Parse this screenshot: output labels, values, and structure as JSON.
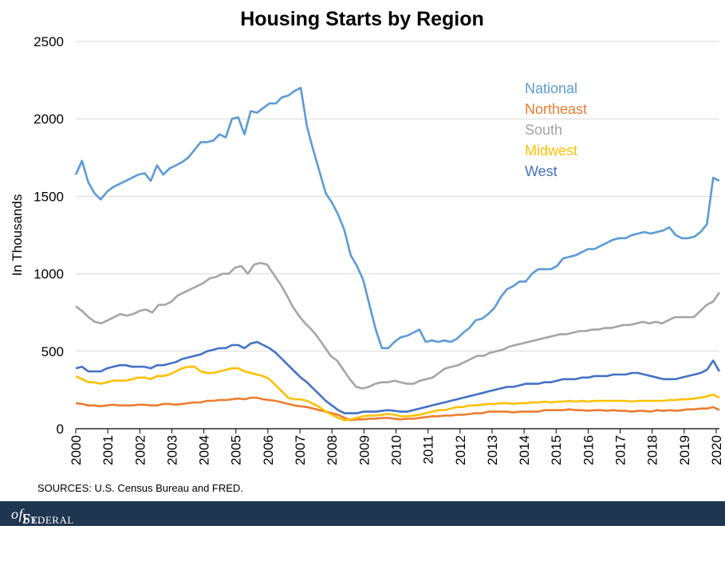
{
  "chart_data": {
    "type": "line",
    "title": "Housing Starts by Region",
    "ylabel": "In Thousands",
    "xlabel": "",
    "ylim": [
      0,
      2500
    ],
    "yticks": [
      0,
      500,
      1000,
      1500,
      2000,
      2500
    ],
    "xlim": [
      2000,
      2020.1
    ],
    "xticks": [
      "2000",
      "2001",
      "2002",
      "2003",
      "2004",
      "2005",
      "2006",
      "2007",
      "2008",
      "2009",
      "2010",
      "2011",
      "2012",
      "2013",
      "2014",
      "2015",
      "2016",
      "2017",
      "2018",
      "2019",
      "2020"
    ],
    "grid": "horizontal",
    "legend_position": "top-right",
    "note": "Monthly values, approximate points read every quarter-year",
    "series": [
      {
        "name": "National",
        "color": "#5b9bd5",
        "values": [
          1640,
          1730,
          1590,
          1520,
          1480,
          1530,
          1560,
          1580,
          1600,
          1620,
          1640,
          1650,
          1600,
          1700,
          1640,
          1680,
          1700,
          1720,
          1750,
          1800,
          1850,
          1850,
          1860,
          1900,
          1880,
          2000,
          2010,
          1900,
          2050,
          2040,
          2070,
          2100,
          2100,
          2140,
          2150,
          2180,
          2200,
          1950,
          1800,
          1660,
          1520,
          1460,
          1380,
          1280,
          1120,
          1050,
          960,
          800,
          640,
          520,
          520,
          560,
          590,
          600,
          620,
          640,
          560,
          570,
          560,
          570,
          560,
          580,
          620,
          650,
          700,
          710,
          740,
          780,
          850,
          900,
          920,
          950,
          950,
          1000,
          1030,
          1030,
          1030,
          1050,
          1100,
          1110,
          1120,
          1140,
          1160,
          1160,
          1180,
          1200,
          1220,
          1230,
          1230,
          1250,
          1260,
          1270,
          1260,
          1270,
          1280,
          1300,
          1250,
          1230,
          1230,
          1240,
          1270,
          1320,
          1620,
          1600
        ]
      },
      {
        "name": "Northeast",
        "color": "#ed7d31",
        "values": [
          165,
          160,
          150,
          150,
          145,
          150,
          155,
          150,
          150,
          150,
          155,
          155,
          150,
          150,
          160,
          160,
          155,
          160,
          165,
          170,
          170,
          180,
          180,
          185,
          185,
          190,
          195,
          190,
          200,
          200,
          190,
          185,
          180,
          170,
          160,
          150,
          145,
          140,
          130,
          120,
          110,
          100,
          90,
          70,
          55,
          60,
          60,
          65,
          65,
          70,
          70,
          65,
          60,
          65,
          65,
          70,
          75,
          80,
          80,
          85,
          85,
          90,
          90,
          95,
          100,
          100,
          110,
          110,
          110,
          110,
          105,
          110,
          110,
          110,
          110,
          120,
          120,
          120,
          120,
          125,
          120,
          120,
          115,
          120,
          120,
          115,
          120,
          115,
          115,
          110,
          115,
          115,
          110,
          120,
          115,
          120,
          115,
          120,
          125,
          125,
          130,
          130,
          140,
          120
        ]
      },
      {
        "name": "South",
        "color": "#a5a5a5",
        "values": [
          790,
          760,
          720,
          690,
          680,
          700,
          720,
          740,
          730,
          740,
          760,
          770,
          750,
          800,
          800,
          820,
          860,
          880,
          900,
          920,
          940,
          970,
          980,
          1000,
          1000,
          1040,
          1050,
          1000,
          1060,
          1070,
          1060,
          1000,
          940,
          870,
          790,
          730,
          680,
          640,
          590,
          530,
          470,
          440,
          380,
          320,
          270,
          260,
          270,
          290,
          300,
          300,
          310,
          300,
          290,
          290,
          310,
          320,
          330,
          360,
          390,
          400,
          410,
          430,
          450,
          470,
          470,
          490,
          500,
          510,
          530,
          540,
          550,
          560,
          570,
          580,
          590,
          600,
          610,
          610,
          620,
          630,
          630,
          640,
          640,
          650,
          650,
          660,
          670,
          670,
          680,
          690,
          680,
          690,
          680,
          700,
          720,
          720,
          720,
          720,
          760,
          800,
          820,
          880
        ]
      },
      {
        "name": "Midwest",
        "color": "#ffc000",
        "values": [
          340,
          320,
          300,
          300,
          290,
          300,
          310,
          310,
          310,
          320,
          330,
          330,
          320,
          340,
          340,
          350,
          370,
          390,
          400,
          400,
          370,
          360,
          360,
          370,
          380,
          390,
          390,
          370,
          360,
          350,
          340,
          320,
          280,
          240,
          200,
          190,
          190,
          180,
          160,
          140,
          110,
          90,
          70,
          55,
          60,
          70,
          80,
          85,
          85,
          90,
          95,
          90,
          80,
          80,
          85,
          90,
          100,
          110,
          120,
          120,
          130,
          140,
          140,
          150,
          150,
          155,
          160,
          160,
          165,
          165,
          160,
          165,
          165,
          170,
          170,
          175,
          170,
          175,
          175,
          180,
          175,
          180,
          175,
          180,
          180,
          180,
          180,
          180,
          180,
          175,
          180,
          180,
          180,
          180,
          180,
          185,
          185,
          190,
          190,
          195,
          200,
          210,
          220,
          200
        ]
      },
      {
        "name": "West",
        "color": "#4472c4",
        "values": [
          390,
          400,
          370,
          370,
          370,
          390,
          400,
          410,
          410,
          400,
          400,
          400,
          390,
          410,
          410,
          420,
          430,
          450,
          460,
          470,
          480,
          500,
          510,
          520,
          520,
          540,
          540,
          520,
          550,
          560,
          540,
          520,
          490,
          450,
          410,
          370,
          330,
          300,
          260,
          220,
          180,
          150,
          120,
          100,
          100,
          100,
          110,
          110,
          110,
          115,
          120,
          115,
          110,
          110,
          120,
          130,
          140,
          150,
          160,
          170,
          180,
          190,
          200,
          210,
          220,
          230,
          240,
          250,
          260,
          270,
          270,
          280,
          290,
          290,
          290,
          300,
          300,
          310,
          320,
          320,
          320,
          330,
          330,
          340,
          340,
          340,
          350,
          350,
          350,
          360,
          360,
          350,
          340,
          330,
          320,
          320,
          320,
          330,
          340,
          350,
          360,
          380,
          440,
          370
        ]
      }
    ]
  },
  "source_note": "SOURCES: U.S. Census Bureau and FRED.",
  "footer": {
    "prefix": "Federal Reserve Bank",
    "of": "of",
    "suffix": "St. Louis"
  }
}
